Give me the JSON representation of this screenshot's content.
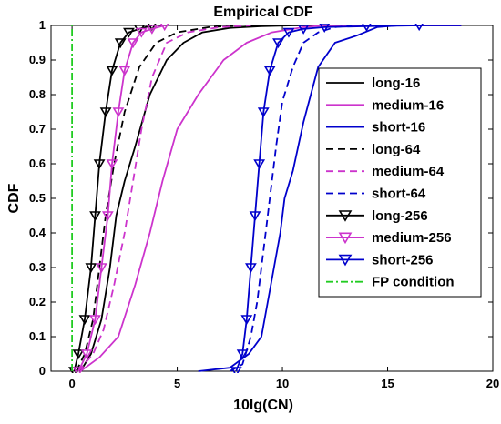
{
  "chart_data": {
    "type": "line",
    "title": "Empirical CDF",
    "xlabel": "10lg(CN)",
    "ylabel": "CDF",
    "xlim": [
      -1,
      20
    ],
    "ylim": [
      0,
      1
    ],
    "x_ticks": [
      "0",
      "5",
      "10",
      "15",
      "20"
    ],
    "y_ticks": [
      "0",
      "0.1",
      "0.2",
      "0.3",
      "0.4",
      "0.5",
      "0.6",
      "0.7",
      "0.8",
      "0.9",
      "1"
    ],
    "grid": false,
    "legend_position": "right",
    "series": [
      {
        "name": "long-16",
        "color": "#000000",
        "dash": "solid",
        "marker": "none",
        "points": [
          [
            0.4,
            0
          ],
          [
            0.9,
            0.05
          ],
          [
            1.4,
            0.15
          ],
          [
            1.8,
            0.3
          ],
          [
            2.1,
            0.45
          ],
          [
            2.5,
            0.55
          ],
          [
            3.0,
            0.65
          ],
          [
            3.7,
            0.8
          ],
          [
            4.5,
            0.9
          ],
          [
            5.3,
            0.95
          ],
          [
            6.2,
            0.98
          ],
          [
            7.5,
            0.993
          ],
          [
            9,
            0.998
          ],
          [
            10.5,
            1
          ],
          [
            18.5,
            1
          ]
        ]
      },
      {
        "name": "medium-16",
        "color": "#cc33cc",
        "dash": "solid",
        "marker": "none",
        "points": [
          [
            0.4,
            0
          ],
          [
            1.3,
            0.04
          ],
          [
            2.2,
            0.1
          ],
          [
            3.0,
            0.25
          ],
          [
            3.7,
            0.4
          ],
          [
            4.3,
            0.55
          ],
          [
            5.0,
            0.7
          ],
          [
            6.0,
            0.8
          ],
          [
            7.2,
            0.9
          ],
          [
            8.3,
            0.95
          ],
          [
            9.5,
            0.98
          ],
          [
            11,
            0.995
          ],
          [
            12,
            1
          ],
          [
            18.5,
            1
          ]
        ]
      },
      {
        "name": "short-16",
        "color": "#0000cc",
        "dash": "solid",
        "marker": "none",
        "points": [
          [
            6.0,
            0
          ],
          [
            7.5,
            0.01
          ],
          [
            8.4,
            0.05
          ],
          [
            9.0,
            0.1
          ],
          [
            9.6,
            0.3
          ],
          [
            9.9,
            0.4
          ],
          [
            10.1,
            0.5
          ],
          [
            10.5,
            0.58
          ],
          [
            11.0,
            0.72
          ],
          [
            11.7,
            0.88
          ],
          [
            12.5,
            0.95
          ],
          [
            13.5,
            0.97
          ],
          [
            14.5,
            0.995
          ],
          [
            15.5,
            1
          ],
          [
            18.5,
            1
          ]
        ]
      },
      {
        "name": "long-64",
        "color": "#000000",
        "dash": "dashed",
        "marker": "none",
        "points": [
          [
            0.2,
            0
          ],
          [
            0.6,
            0.05
          ],
          [
            1.0,
            0.15
          ],
          [
            1.3,
            0.3
          ],
          [
            1.6,
            0.45
          ],
          [
            2.0,
            0.6
          ],
          [
            2.5,
            0.75
          ],
          [
            3.2,
            0.88
          ],
          [
            4.0,
            0.95
          ],
          [
            5.0,
            0.98
          ],
          [
            6.5,
            0.995
          ],
          [
            8,
            1
          ]
        ]
      },
      {
        "name": "medium-64",
        "color": "#cc33cc",
        "dash": "dashed",
        "marker": "none",
        "points": [
          [
            0.3,
            0
          ],
          [
            1.0,
            0.05
          ],
          [
            1.5,
            0.12
          ],
          [
            2.0,
            0.25
          ],
          [
            2.5,
            0.4
          ],
          [
            2.9,
            0.55
          ],
          [
            3.3,
            0.7
          ],
          [
            3.8,
            0.85
          ],
          [
            4.5,
            0.95
          ],
          [
            5.5,
            0.98
          ],
          [
            7,
            0.995
          ],
          [
            8.5,
            1
          ]
        ]
      },
      {
        "name": "short-64",
        "color": "#0000cc",
        "dash": "dashed",
        "marker": "none",
        "points": [
          [
            7.5,
            0
          ],
          [
            8.1,
            0.02
          ],
          [
            8.5,
            0.1
          ],
          [
            8.8,
            0.2
          ],
          [
            9.1,
            0.35
          ],
          [
            9.4,
            0.5
          ],
          [
            9.7,
            0.65
          ],
          [
            10.0,
            0.78
          ],
          [
            10.5,
            0.88
          ],
          [
            11.0,
            0.95
          ],
          [
            11.7,
            0.98
          ],
          [
            12.5,
            0.995
          ],
          [
            13.3,
            1
          ]
        ]
      },
      {
        "name": "long-256",
        "color": "#000000",
        "dash": "solid",
        "marker": "triangle-down",
        "points": [
          [
            0.1,
            0
          ],
          [
            0.3,
            0.05
          ],
          [
            0.6,
            0.15
          ],
          [
            0.9,
            0.3
          ],
          [
            1.1,
            0.45
          ],
          [
            1.3,
            0.6
          ],
          [
            1.6,
            0.75
          ],
          [
            1.9,
            0.87
          ],
          [
            2.3,
            0.95
          ],
          [
            2.7,
            0.98
          ],
          [
            3.2,
            0.99
          ],
          [
            3.8,
            1
          ]
        ]
      },
      {
        "name": "medium-256",
        "color": "#cc33cc",
        "dash": "solid",
        "marker": "triangle-down",
        "points": [
          [
            0.3,
            0
          ],
          [
            0.7,
            0.05
          ],
          [
            1.1,
            0.15
          ],
          [
            1.4,
            0.3
          ],
          [
            1.7,
            0.45
          ],
          [
            1.9,
            0.6
          ],
          [
            2.2,
            0.75
          ],
          [
            2.5,
            0.87
          ],
          [
            2.9,
            0.95
          ],
          [
            3.3,
            0.98
          ],
          [
            3.8,
            0.99
          ],
          [
            4.4,
            1
          ]
        ]
      },
      {
        "name": "short-256",
        "color": "#0000cc",
        "dash": "solid",
        "marker": "triangle-down",
        "points": [
          [
            7.8,
            0
          ],
          [
            8.1,
            0.05
          ],
          [
            8.3,
            0.15
          ],
          [
            8.5,
            0.3
          ],
          [
            8.7,
            0.45
          ],
          [
            8.9,
            0.6
          ],
          [
            9.1,
            0.75
          ],
          [
            9.4,
            0.87
          ],
          [
            9.8,
            0.95
          ],
          [
            10.3,
            0.98
          ],
          [
            11,
            0.99
          ],
          [
            12,
            0.995
          ],
          [
            14,
            0.998
          ],
          [
            16.5,
            1
          ]
        ]
      },
      {
        "name": "FP condition",
        "color": "#22cc22",
        "dash": "dashdot",
        "marker": "none",
        "points": [
          [
            0,
            0
          ],
          [
            0,
            1
          ]
        ]
      }
    ]
  }
}
